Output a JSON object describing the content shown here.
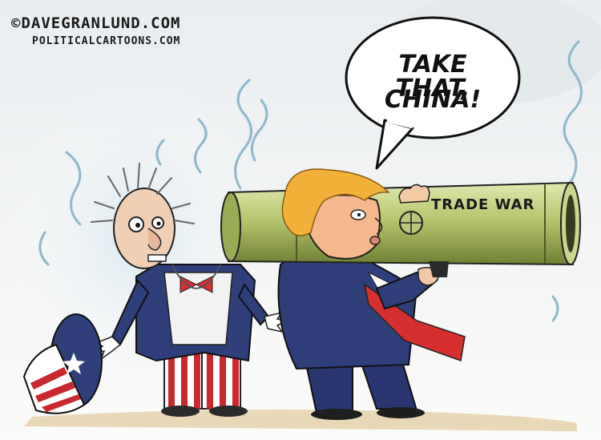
{
  "credit": {
    "main": "©DAVEGRANLUND.COM",
    "sub": "POLITICALCARTOONS.COM"
  },
  "speech": {
    "line1": "TAKE THAT,",
    "line2": "CHINA!"
  },
  "bazooka": {
    "label": "TRADE WAR"
  },
  "colors": {
    "bazooka_green": "#b8c77a",
    "suit_navy": "#2e3f7a",
    "tie_red": "#d62f2f",
    "hair_orange": "#f2b23a",
    "smoke_blue": "#9ec6d8",
    "stripe_red": "#c8282e"
  }
}
